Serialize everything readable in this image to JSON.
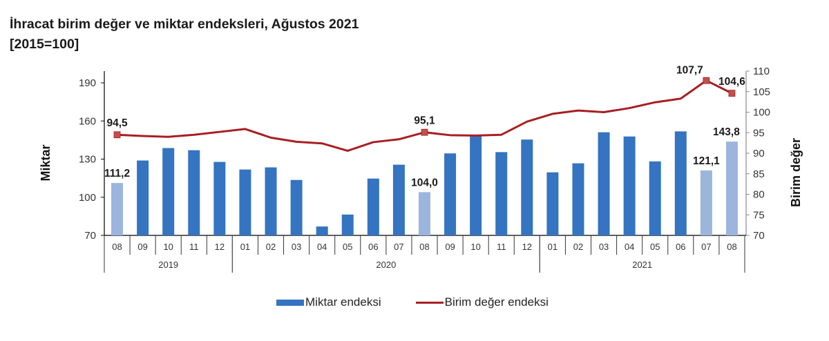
{
  "title": "İhracat birim değer ve miktar endeksleri, Ağustos 2021",
  "subtitle": "[2015=100]",
  "colors": {
    "bar": "#3474c0",
    "bar_highlight": "#9bb5dc",
    "line": "#a81e22",
    "marker": "#c0504d"
  },
  "legend": {
    "bar_label": "Miktar endeksi",
    "line_label": "Birim değer endeksi"
  },
  "chart_data": {
    "type": "bar+line",
    "title": "İhracat birim değer ve miktar endeksleri, Ağustos 2021",
    "subtitle": "[2015=100]",
    "xlabel": "",
    "ylabel_left": "Miktar",
    "ylabel_right": "Birim değer",
    "ylim_left": [
      70,
      190
    ],
    "yticks_left": [
      70,
      100,
      130,
      160,
      190
    ],
    "ylim_right": [
      70,
      110
    ],
    "yticks_right": [
      70,
      75,
      80,
      85,
      90,
      95,
      100,
      105,
      110
    ],
    "grid": false,
    "legend_position": "bottom",
    "categories": [
      "08",
      "09",
      "10",
      "11",
      "12",
      "01",
      "02",
      "03",
      "04",
      "05",
      "06",
      "07",
      "08",
      "09",
      "10",
      "11",
      "12",
      "01",
      "02",
      "03",
      "04",
      "05",
      "06",
      "07",
      "08"
    ],
    "years": [
      {
        "label": "2019",
        "start": 0,
        "end": 4
      },
      {
        "label": "2020",
        "start": 5,
        "end": 16
      },
      {
        "label": "2021",
        "start": 17,
        "end": 24
      }
    ],
    "series": [
      {
        "name": "Miktar endeksi",
        "type": "bar",
        "axis": "left",
        "values": [
          111.2,
          128.9,
          138.7,
          137.0,
          127.8,
          121.8,
          123.5,
          113.6,
          77.0,
          86.4,
          114.7,
          125.6,
          104.0,
          134.5,
          148.0,
          135.5,
          145.4,
          119.6,
          126.7,
          151.1,
          147.8,
          128.2,
          151.8,
          121.1,
          143.8
        ],
        "highlighted": [
          0,
          12,
          23,
          24
        ]
      },
      {
        "name": "Birim değer endeksi",
        "type": "line",
        "axis": "right",
        "values": [
          94.5,
          94.2,
          94.0,
          94.5,
          95.2,
          95.9,
          93.8,
          92.8,
          92.4,
          90.6,
          92.7,
          93.4,
          95.1,
          94.4,
          94.3,
          94.5,
          97.7,
          99.6,
          100.4,
          100.0,
          101.0,
          102.4,
          103.3,
          107.7,
          104.6
        ],
        "markers": [
          0,
          12,
          23,
          24
        ]
      }
    ],
    "annotations": [
      {
        "series": "Miktar endeksi",
        "index": 0,
        "text": "111,2"
      },
      {
        "series": "Miktar endeksi",
        "index": 12,
        "text": "104,0"
      },
      {
        "series": "Miktar endeksi",
        "index": 23,
        "text": "121,1"
      },
      {
        "series": "Miktar endeksi",
        "index": 24,
        "text": "143,8"
      },
      {
        "series": "Birim değer endeksi",
        "index": 0,
        "text": "94,5"
      },
      {
        "series": "Birim değer endeksi",
        "index": 12,
        "text": "95,1"
      },
      {
        "series": "Birim değer endeksi",
        "index": 23,
        "text": "107,7"
      },
      {
        "series": "Birim değer endeksi",
        "index": 24,
        "text": "104,6"
      }
    ]
  }
}
